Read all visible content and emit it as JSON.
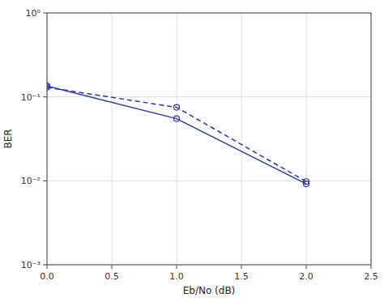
{
  "chart_data": {
    "type": "line",
    "x": [
      0,
      1,
      2
    ],
    "series": [
      {
        "color": "#2B3899",
        "values": [
          0.135,
          0.055,
          0.0092
        ],
        "line_style": "solid",
        "marker": "circle"
      },
      {
        "color": "#2B3899",
        "values": [
          0.13,
          0.075,
          0.0098
        ],
        "line_style": "dashed",
        "marker": "circle"
      }
    ],
    "xlabel": "Eb/No (dB)",
    "ylabel": "BER",
    "log": "y",
    "xlim": [
      0,
      2.5
    ],
    "ylim": [
      0.001,
      1
    ],
    "xticks": [
      {
        "value": 0,
        "label": "0.0"
      },
      0.5,
      {
        "value": 1,
        "label": "1.0"
      },
      1.5,
      {
        "value": 2,
        "label": "2.0"
      },
      2.5
    ],
    "yticks": [
      {
        "value": 0.001,
        "label": "10⁻³"
      },
      {
        "value": 0.01,
        "label": "10⁻²"
      },
      {
        "value": 0.1,
        "label": "10⁻¹"
      },
      {
        "value": 1,
        "label": "10⁰"
      }
    ],
    "grid": true
  }
}
